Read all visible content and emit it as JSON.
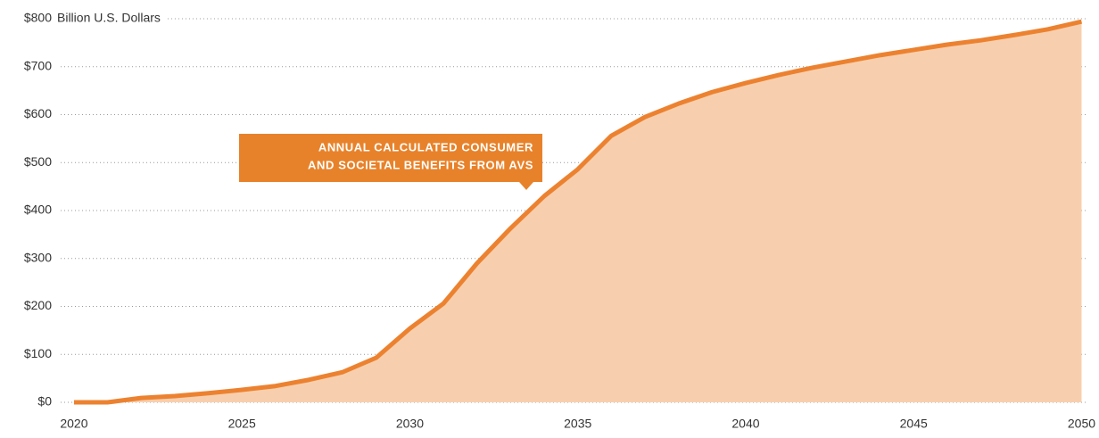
{
  "chart_data": {
    "type": "area",
    "unit_label": "Billion U.S. Dollars",
    "annotation": [
      "ANNUAL CALCULATED CONSUMER",
      "AND SOCIETAL BENEFITS FROM AVS"
    ],
    "x": [
      2020,
      2021,
      2022,
      2023,
      2024,
      2025,
      2026,
      2027,
      2028,
      2029,
      2030,
      2031,
      2032,
      2033,
      2034,
      2035,
      2036,
      2037,
      2038,
      2039,
      2040,
      2041,
      2042,
      2043,
      2044,
      2045,
      2046,
      2047,
      2048,
      2049,
      2050
    ],
    "series": [
      {
        "name": "Annual calculated consumer and societal benefits from AVs",
        "color": "#ec8230",
        "fill": "#f8cfae",
        "values": [
          0,
          0,
          9,
          13,
          19,
          26,
          34,
          47,
          63,
          93,
          154,
          206,
          290,
          363,
          430,
          486,
          556,
          595,
          623,
          647,
          666,
          683,
          698,
          711,
          724,
          735,
          746,
          755,
          766,
          778,
          794
        ]
      }
    ],
    "xlim": [
      2019.55,
      2050.2
    ],
    "xticks": [
      2020,
      2025,
      2030,
      2035,
      2040,
      2045,
      2050
    ],
    "ylim": [
      0,
      800
    ],
    "yticks": [
      {
        "value": 0,
        "label": "$0"
      },
      {
        "value": 100,
        "label": "$100"
      },
      {
        "value": 200,
        "label": "$200"
      },
      {
        "value": 300,
        "label": "$300"
      },
      {
        "value": 400,
        "label": "$400"
      },
      {
        "value": 500,
        "label": "$500"
      },
      {
        "value": 600,
        "label": "$600"
      },
      {
        "value": 700,
        "label": "$700"
      },
      {
        "value": 800,
        "label": "$800"
      }
    ],
    "grid": true
  }
}
